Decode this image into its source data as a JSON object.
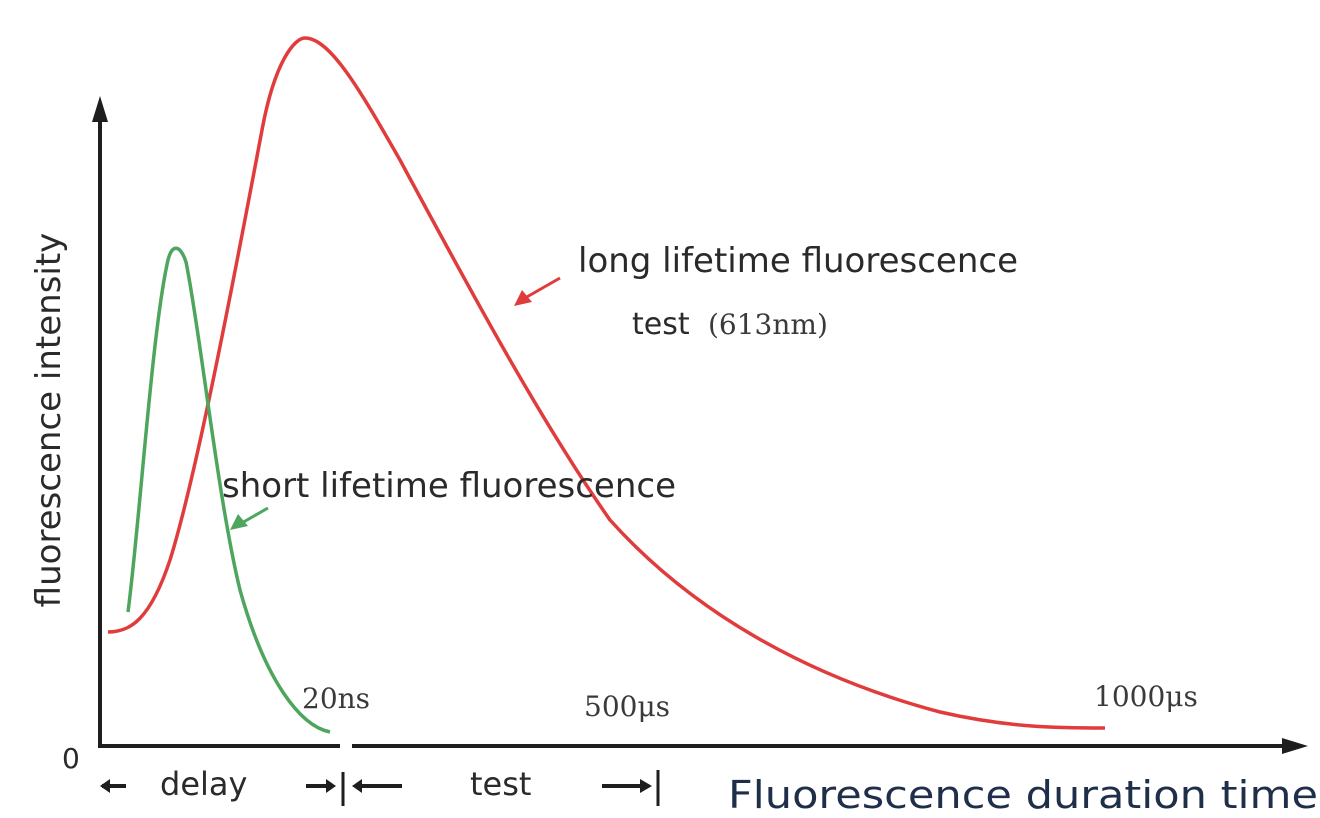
{
  "axes": {
    "y_label": "fluorescence intensity",
    "x_label": "Fluorescence duration time",
    "origin_label": "0"
  },
  "curves": {
    "long": {
      "label_line1": "long lifetime fluorescence",
      "label_line2_word": "test",
      "label_line2_value": "(613nm)",
      "color": "#e03c3c"
    },
    "short": {
      "label": "short lifetime fluorescence",
      "color": "#4ea55e"
    }
  },
  "time_marks": {
    "t1": "20ns",
    "t2": "500μs",
    "t3": "1000μs"
  },
  "intervals": {
    "delay": "delay",
    "test": "test"
  }
}
